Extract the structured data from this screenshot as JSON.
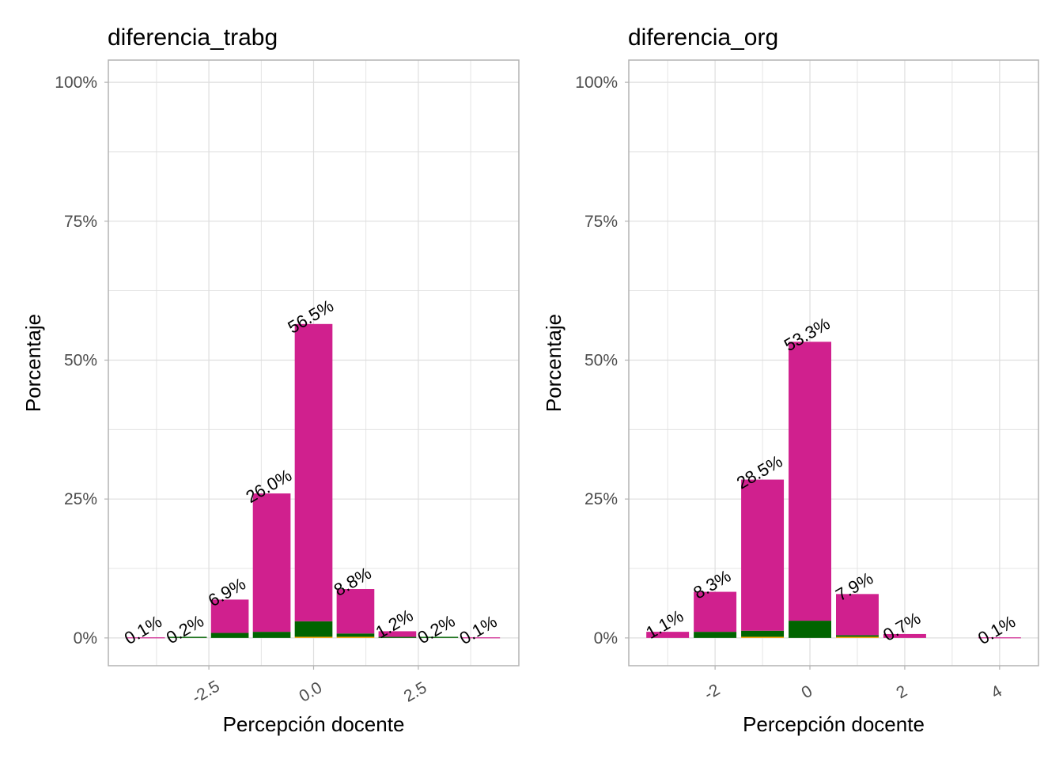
{
  "colors": {
    "pink": "#d0208e",
    "green": "#006400",
    "orange": "#ffa500",
    "grid": "#dedede",
    "border": "#b3b3b3"
  },
  "chart_data": [
    {
      "type": "bar",
      "stacked": true,
      "title": "diferencia_trabg",
      "xlabel": "Percepción docente",
      "ylabel": "Porcentaje",
      "xlim": [
        -4.9,
        4.9
      ],
      "ylim": [
        -5,
        104
      ],
      "xticks": [
        -2.5,
        0,
        2.5
      ],
      "xtick_labels": [
        "-2.5",
        "0.0",
        "2.5"
      ],
      "xminor": [
        -3.75,
        -1.25,
        1.25,
        3.75
      ],
      "yticks": [
        0,
        25,
        50,
        75,
        100
      ],
      "ytick_labels": [
        "0%",
        "25%",
        "50%",
        "75%",
        "100%"
      ],
      "x": [
        -4,
        -3,
        -2,
        -1,
        0,
        1,
        2,
        3,
        4
      ],
      "totals": [
        0.1,
        0.2,
        6.9,
        26.0,
        56.5,
        8.8,
        1.2,
        0.2,
        0.1
      ],
      "labels": [
        "0.1%",
        "0.2%",
        "6.9%",
        "26.0%",
        "56.5%",
        "8.8%",
        "1.2%",
        "0.2%",
        "0.1%"
      ],
      "series": [
        {
          "name": "orange",
          "color": "#ffa500",
          "values": [
            0,
            0,
            0,
            0,
            0.2,
            0.2,
            0,
            0,
            0
          ]
        },
        {
          "name": "green",
          "color": "#006400",
          "values": [
            0,
            0.2,
            0.9,
            1.1,
            2.8,
            0.6,
            0.2,
            0.2,
            0
          ]
        },
        {
          "name": "pink",
          "color": "#d0208e",
          "values": [
            0.1,
            0,
            6.0,
            24.9,
            53.5,
            8.0,
            1.0,
            0,
            0.1
          ]
        }
      ],
      "grid": true,
      "legend": "none"
    },
    {
      "type": "bar",
      "stacked": true,
      "title": "diferencia_org",
      "xlabel": "Percepción docente",
      "ylabel": "Porcentaje",
      "xlim": [
        -3.82,
        4.82
      ],
      "ylim": [
        -5,
        104
      ],
      "xticks": [
        -2,
        0,
        2,
        4
      ],
      "xtick_labels": [
        "-2",
        "0",
        "2",
        "4"
      ],
      "xminor": [
        -3,
        -1,
        1,
        3
      ],
      "yticks": [
        0,
        25,
        50,
        75,
        100
      ],
      "ytick_labels": [
        "0%",
        "25%",
        "50%",
        "75%",
        "100%"
      ],
      "x": [
        -3,
        -2,
        -1,
        0,
        1,
        2,
        4
      ],
      "totals": [
        1.1,
        8.3,
        28.5,
        53.3,
        7.9,
        0.7,
        0.1
      ],
      "labels": [
        "1.1%",
        "8.3%",
        "28.5%",
        "53.3%",
        "7.9%",
        "0.7%",
        "0.1%"
      ],
      "series": [
        {
          "name": "orange",
          "color": "#ffa500",
          "values": [
            0,
            0,
            0.2,
            0,
            0.2,
            0,
            0
          ]
        },
        {
          "name": "green",
          "color": "#006400",
          "values": [
            0,
            1.1,
            1.1,
            3.1,
            0.3,
            0,
            0
          ]
        },
        {
          "name": "pink",
          "color": "#d0208e",
          "values": [
            1.1,
            7.2,
            27.2,
            50.2,
            7.4,
            0.7,
            0.1
          ]
        }
      ],
      "grid": true,
      "legend": "none"
    }
  ]
}
